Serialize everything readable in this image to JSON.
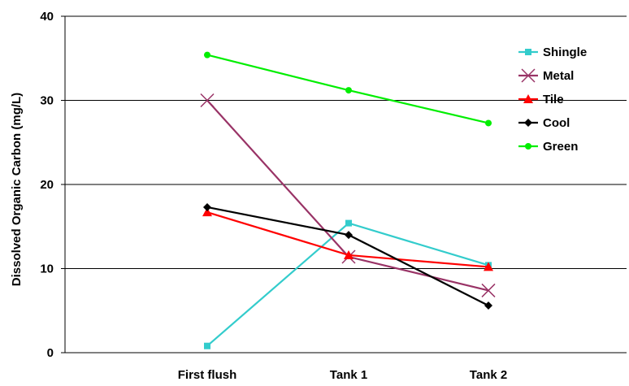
{
  "chart_data": {
    "type": "line",
    "title": "",
    "xlabel": "",
    "ylabel": "Dissolved Organic Carbon (mg/L)",
    "categories": [
      "First flush",
      "Tank 1",
      "Tank 2"
    ],
    "ylim": [
      0,
      40
    ],
    "yticks": [
      "0",
      "10",
      "20",
      "30",
      "40"
    ],
    "grid": "horizontal",
    "legend_position": "top-right",
    "series": [
      {
        "name": "Shingle",
        "color": "#33CCCC",
        "marker": "square",
        "values": [
          0.8,
          15.4,
          10.4
        ]
      },
      {
        "name": "Metal",
        "color": "#993366",
        "marker": "x",
        "values": [
          30.0,
          11.4,
          7.4
        ]
      },
      {
        "name": "Tile",
        "color": "#FF0000",
        "marker": "triangle",
        "values": [
          16.7,
          11.6,
          10.2
        ]
      },
      {
        "name": "Cool",
        "color": "#000000",
        "marker": "diamond",
        "values": [
          17.3,
          14.0,
          5.6
        ]
      },
      {
        "name": "Green",
        "color": "#00EE00",
        "marker": "circle",
        "values": [
          35.4,
          31.2,
          27.3
        ]
      }
    ]
  }
}
